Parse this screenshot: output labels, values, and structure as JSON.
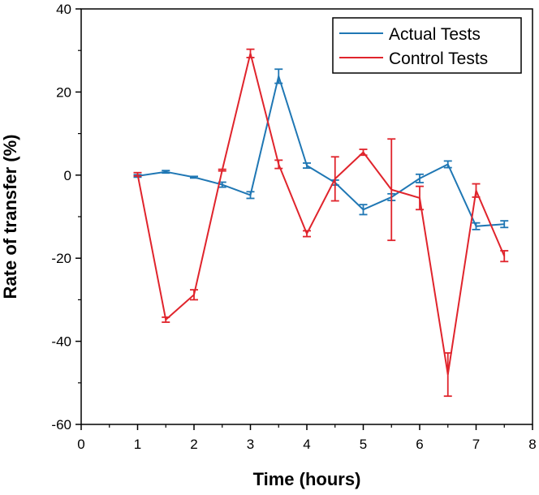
{
  "chart_data": {
    "type": "line",
    "xlabel": "Time (hours)",
    "ylabel": "Rate of transfer (%)",
    "xlim": [
      0,
      8
    ],
    "ylim": [
      -60,
      40
    ],
    "x_ticks": [
      "0",
      "1",
      "2",
      "3",
      "4",
      "5",
      "6",
      "7",
      "8"
    ],
    "y_ticks": [
      "-60",
      "-40",
      "-20",
      "0",
      "20",
      "40"
    ],
    "grid": false,
    "legend_position": "top-right",
    "error_bars": true,
    "series": [
      {
        "name": "Actual Tests",
        "color": "#1f77b4",
        "x": [
          1,
          1.5,
          2,
          2.5,
          3,
          3.5,
          4,
          4.5,
          5,
          5.5,
          6,
          6.5,
          7,
          7.5
        ],
        "y": [
          -0.2,
          0.8,
          -0.5,
          -2.3,
          -4.8,
          23.8,
          2.3,
          -1.8,
          -8.3,
          -5.3,
          -0.8,
          2.6,
          -12.3,
          -11.8
        ],
        "err": [
          0.3,
          0.3,
          0.2,
          0.6,
          0.8,
          1.7,
          0.6,
          0.6,
          1.2,
          0.8,
          1.0,
          0.8,
          0.8,
          0.8
        ]
      },
      {
        "name": "Control Tests",
        "color": "#e0242c",
        "x": [
          1,
          1.5,
          2,
          2.5,
          3,
          3.5,
          4,
          4.5,
          5,
          5.5,
          6,
          6.5,
          7,
          7.5
        ],
        "y": [
          0.2,
          -34.8,
          -28.8,
          1.2,
          29.3,
          2.6,
          -14.1,
          -0.9,
          5.5,
          -3.5,
          -5.5,
          -48,
          -3.7,
          -19.5
        ],
        "err": [
          0.4,
          0.6,
          1.2,
          0.2,
          1.0,
          1.0,
          0.7,
          5.3,
          0.7,
          12.2,
          2.8,
          5.2,
          1.6,
          1.3
        ]
      }
    ]
  }
}
